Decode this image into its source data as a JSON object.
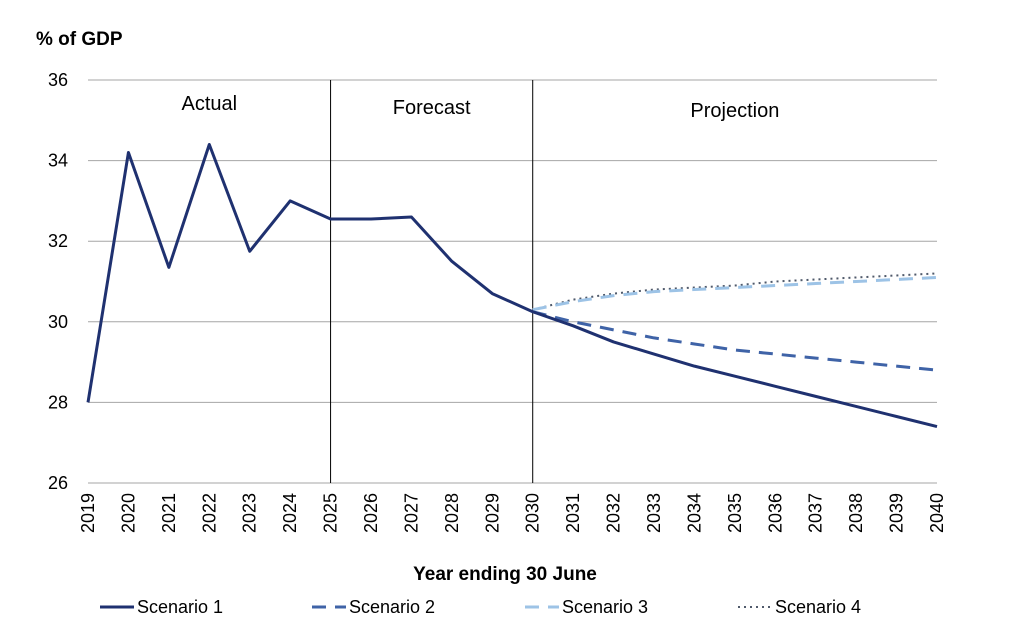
{
  "chart_data": {
    "type": "line",
    "ylabel": "% of GDP",
    "xlabel": "Year ending 30 June",
    "ylim": [
      26,
      36
    ],
    "yticks": [
      26,
      28,
      30,
      32,
      34,
      36
    ],
    "grid": "horizontal",
    "legend_position": "bottom",
    "x": [
      "2019",
      "2020",
      "2021",
      "2022",
      "2023",
      "2024",
      "2025",
      "2026",
      "2027",
      "2028",
      "2029",
      "2030",
      "2031",
      "2032",
      "2033",
      "2034",
      "2035",
      "2036",
      "2037",
      "2038",
      "2039",
      "2040"
    ],
    "regions": [
      {
        "label": "Actual",
        "start": "2019",
        "end": "2025"
      },
      {
        "label": "Forecast",
        "start": "2025",
        "end": "2030"
      },
      {
        "label": "Projection",
        "start": "2030",
        "end": "2040"
      }
    ],
    "dividers": [
      "2025",
      "2030"
    ],
    "series": [
      {
        "name": "Scenario 1",
        "color": "#1f3170",
        "dash": "solid",
        "values": [
          28.0,
          34.2,
          31.35,
          34.4,
          31.75,
          33.0,
          32.55,
          32.55,
          32.6,
          31.5,
          30.7,
          30.25,
          29.9,
          29.5,
          29.2,
          28.9,
          28.65,
          28.4,
          28.15,
          27.9,
          27.65,
          27.4
        ]
      },
      {
        "name": "Scenario 2",
        "color": "#3f63a7",
        "dash": "dashed",
        "values": [
          null,
          null,
          null,
          null,
          null,
          null,
          null,
          null,
          null,
          null,
          null,
          30.25,
          30.0,
          29.8,
          29.6,
          29.45,
          29.3,
          29.2,
          29.1,
          29.0,
          28.9,
          28.8
        ]
      },
      {
        "name": "Scenario 3",
        "color": "#9dc3e6",
        "dash": "dashed",
        "values": [
          null,
          null,
          null,
          null,
          null,
          null,
          null,
          null,
          null,
          null,
          null,
          30.3,
          30.5,
          30.65,
          30.75,
          30.8,
          30.85,
          30.9,
          30.95,
          31.0,
          31.05,
          31.1
        ]
      },
      {
        "name": "Scenario 4",
        "color": "#505a6b",
        "dash": "dotted",
        "values": [
          null,
          null,
          null,
          null,
          null,
          null,
          null,
          null,
          null,
          null,
          null,
          30.3,
          30.55,
          30.7,
          30.8,
          30.85,
          30.9,
          31.0,
          31.05,
          31.1,
          31.15,
          31.2
        ]
      }
    ]
  }
}
